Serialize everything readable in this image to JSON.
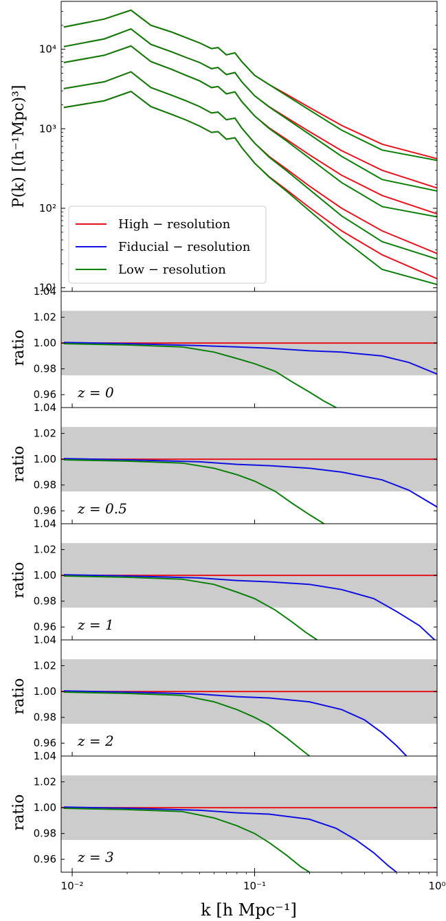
{
  "chart_data": [
    {
      "type": "line",
      "panel": "power-spectrum",
      "ylabel": "P(k) [(h⁻¹Mpc)³]",
      "xscale": "log",
      "yscale": "log",
      "xlim": [
        0.0087,
        1.0
      ],
      "ylim": [
        9.0,
        40000
      ],
      "xticks": [
        {
          "v": 0.01,
          "label": "10⁻²"
        },
        {
          "v": 0.1,
          "label": "10⁻¹"
        },
        {
          "v": 1,
          "label": "10⁰"
        }
      ],
      "yticks": [
        {
          "v": 10,
          "label": "10¹"
        },
        {
          "v": 100,
          "label": "10²"
        },
        {
          "v": 1000,
          "label": "10³"
        },
        {
          "v": 10000,
          "label": "10⁴"
        }
      ],
      "legend": {
        "position": "lower-left",
        "entries": [
          {
            "label": "High − resolution",
            "color": "#e6131d"
          },
          {
            "label": "Fiducial − resolution",
            "color": "#1010e0"
          },
          {
            "label": "Low − resolution",
            "color": "#0a800a"
          }
        ]
      },
      "x": [
        0.009,
        0.015,
        0.021,
        0.027,
        0.035,
        0.042,
        0.05,
        0.058,
        0.063,
        0.07,
        0.078,
        0.085,
        0.1,
        0.12,
        0.15,
        0.2,
        0.3,
        0.5,
        1.0
      ],
      "series": [
        {
          "name": "High − resolution",
          "color": "#e6131d",
          "curves": [
            [
              19000,
              24000,
              31000,
              20000,
              16500,
              14000,
              12000,
              10200,
              10500,
              8500,
              9000,
              7000,
              4700,
              3600,
              2700,
              1850,
              1100,
              640,
              420
            ],
            [
              10800,
              13500,
              18000,
              11500,
              9300,
              7900,
              6800,
              5700,
              5900,
              4800,
              5100,
              3900,
              2600,
              1900,
              1380,
              920,
              530,
              300,
              180
            ],
            [
              6800,
              8400,
              11000,
              7000,
              5600,
              4700,
              4000,
              3300,
              3400,
              2750,
              2900,
              2200,
              1450,
              1030,
              730,
              470,
              260,
              145,
              85
            ],
            [
              3200,
              3900,
              5200,
              3300,
              2650,
              2250,
              1900,
              1580,
              1620,
              1300,
              1360,
              1020,
              660,
              450,
              310,
              190,
              100,
              52,
              27
            ],
            [
              1850,
              2250,
              2950,
              1900,
              1520,
              1290,
              1080,
              900,
              920,
              740,
              770,
              580,
              370,
              250,
              170,
              102,
              52,
              26,
              13
            ]
          ]
        },
        {
          "name": "Low − resolution",
          "color": "#0a800a",
          "curves": [
            [
              19000,
              24000,
              31000,
              20000,
              16500,
              14000,
              12000,
              10200,
              10500,
              8500,
              9000,
              7000,
              4700,
              3600,
              2600,
              1720,
              960,
              540,
              400
            ],
            [
              10800,
              13500,
              18000,
              11500,
              9300,
              7900,
              6800,
              5700,
              5900,
              4800,
              5100,
              3900,
              2600,
              1880,
              1330,
              850,
              450,
              230,
              165
            ],
            [
              6800,
              8400,
              11000,
              7000,
              5600,
              4700,
              4000,
              3300,
              3400,
              2750,
              2900,
              2200,
              1450,
              1010,
              700,
              425,
              210,
              105,
              78
            ],
            [
              3200,
              3900,
              5200,
              3300,
              2650,
              2250,
              1900,
              1580,
              1620,
              1300,
              1360,
              1020,
              660,
              440,
              295,
              172,
              80,
              38,
              23
            ],
            [
              1850,
              2250,
              2950,
              1900,
              1520,
              1290,
              1080,
              900,
              920,
              740,
              770,
              580,
              370,
              247,
              163,
              93,
              42,
              17,
              11
            ]
          ]
        }
      ]
    },
    {
      "type": "line",
      "panel": "ratio",
      "redshift_label": "z = 0",
      "ylabel": "ratio",
      "ylim": [
        0.95,
        1.04
      ],
      "yticks": [
        0.96,
        0.98,
        1.0,
        1.02,
        1.04
      ],
      "band": [
        0.975,
        1.025
      ],
      "xscale": "log",
      "series": [
        {
          "name": "High − resolution",
          "color": "#e6131d",
          "x": [
            0.0087,
            1.0
          ],
          "values": [
            1.0,
            1.0
          ]
        },
        {
          "name": "Fiducial − resolution",
          "color": "#1010e0",
          "x": [
            0.009,
            0.02,
            0.05,
            0.08,
            0.12,
            0.2,
            0.3,
            0.5,
            0.7,
            1.0
          ],
          "values": [
            1.0005,
            0.9995,
            0.998,
            0.997,
            0.996,
            0.994,
            0.993,
            0.99,
            0.985,
            0.976
          ]
        },
        {
          "name": "Low − resolution",
          "color": "#0a800a",
          "x": [
            0.009,
            0.02,
            0.04,
            0.06,
            0.08,
            0.1,
            0.13,
            0.16,
            0.2,
            0.24,
            0.28
          ],
          "values": [
            0.9995,
            0.9985,
            0.997,
            0.993,
            0.988,
            0.984,
            0.978,
            0.97,
            0.962,
            0.955,
            0.95
          ]
        }
      ]
    },
    {
      "type": "line",
      "panel": "ratio",
      "redshift_label": "z = 0.5",
      "ylabel": "ratio",
      "ylim": [
        0.95,
        1.04
      ],
      "yticks": [
        0.96,
        0.98,
        1.0,
        1.02,
        1.04
      ],
      "band": [
        0.975,
        1.025
      ],
      "xscale": "log",
      "series": [
        {
          "name": "High − resolution",
          "color": "#e6131d",
          "x": [
            0.0087,
            1.0
          ],
          "values": [
            1.0,
            1.0
          ]
        },
        {
          "name": "Fiducial − resolution",
          "color": "#1010e0",
          "x": [
            0.009,
            0.02,
            0.05,
            0.08,
            0.12,
            0.2,
            0.3,
            0.5,
            0.7,
            1.0
          ],
          "values": [
            1.0005,
            0.9995,
            0.998,
            0.996,
            0.995,
            0.993,
            0.99,
            0.984,
            0.976,
            0.963
          ]
        },
        {
          "name": "Low − resolution",
          "color": "#0a800a",
          "x": [
            0.009,
            0.02,
            0.04,
            0.06,
            0.08,
            0.1,
            0.13,
            0.16,
            0.2,
            0.24
          ],
          "values": [
            0.9995,
            0.9985,
            0.997,
            0.993,
            0.988,
            0.983,
            0.975,
            0.966,
            0.957,
            0.95
          ]
        }
      ]
    },
    {
      "type": "line",
      "panel": "ratio",
      "redshift_label": "z = 1",
      "ylabel": "ratio",
      "ylim": [
        0.95,
        1.04
      ],
      "yticks": [
        0.96,
        0.98,
        1.0,
        1.02,
        1.04
      ],
      "band": [
        0.975,
        1.025
      ],
      "xscale": "log",
      "series": [
        {
          "name": "High − resolution",
          "color": "#e6131d",
          "x": [
            0.0087,
            1.0
          ],
          "values": [
            1.0,
            1.0
          ]
        },
        {
          "name": "Fiducial − resolution",
          "color": "#1010e0",
          "x": [
            0.009,
            0.02,
            0.05,
            0.08,
            0.12,
            0.2,
            0.3,
            0.45,
            0.6,
            0.8,
            0.97
          ],
          "values": [
            1.0005,
            0.9995,
            0.998,
            0.996,
            0.995,
            0.993,
            0.989,
            0.982,
            0.972,
            0.961,
            0.95
          ]
        },
        {
          "name": "Low − resolution",
          "color": "#0a800a",
          "x": [
            0.009,
            0.02,
            0.04,
            0.06,
            0.08,
            0.1,
            0.13,
            0.16,
            0.19,
            0.22
          ],
          "values": [
            0.9995,
            0.9985,
            0.997,
            0.993,
            0.987,
            0.982,
            0.973,
            0.964,
            0.956,
            0.95
          ]
        }
      ]
    },
    {
      "type": "line",
      "panel": "ratio",
      "redshift_label": "z = 2",
      "ylabel": "ratio",
      "ylim": [
        0.95,
        1.04
      ],
      "yticks": [
        0.96,
        0.98,
        1.0,
        1.02,
        1.04
      ],
      "band": [
        0.975,
        1.025
      ],
      "xscale": "log",
      "series": [
        {
          "name": "High − resolution",
          "color": "#e6131d",
          "x": [
            0.0087,
            1.0
          ],
          "values": [
            1.0,
            1.0
          ]
        },
        {
          "name": "Fiducial − resolution",
          "color": "#1010e0",
          "x": [
            0.009,
            0.02,
            0.05,
            0.08,
            0.12,
            0.2,
            0.3,
            0.4,
            0.5,
            0.6,
            0.68
          ],
          "values": [
            1.0005,
            0.9995,
            0.998,
            0.996,
            0.995,
            0.992,
            0.986,
            0.978,
            0.968,
            0.958,
            0.95
          ]
        },
        {
          "name": "Low − resolution",
          "color": "#0a800a",
          "x": [
            0.009,
            0.02,
            0.04,
            0.06,
            0.08,
            0.1,
            0.12,
            0.15,
            0.18,
            0.2
          ],
          "values": [
            0.9995,
            0.9985,
            0.997,
            0.992,
            0.986,
            0.98,
            0.974,
            0.964,
            0.955,
            0.95
          ]
        }
      ]
    },
    {
      "type": "line",
      "panel": "ratio",
      "redshift_label": "z = 3",
      "ylabel": "ratio",
      "ylim": [
        0.95,
        1.04
      ],
      "yticks": [
        0.96,
        0.98,
        1.0,
        1.02,
        1.04
      ],
      "band": [
        0.975,
        1.025
      ],
      "xscale": "log",
      "series": [
        {
          "name": "High − resolution",
          "color": "#e6131d",
          "x": [
            0.0087,
            1.0
          ],
          "values": [
            1.0,
            1.0
          ]
        },
        {
          "name": "Fiducial − resolution",
          "color": "#1010e0",
          "x": [
            0.009,
            0.02,
            0.05,
            0.08,
            0.12,
            0.2,
            0.28,
            0.36,
            0.45,
            0.54,
            0.6
          ],
          "values": [
            1.0005,
            0.9995,
            0.998,
            0.996,
            0.995,
            0.991,
            0.984,
            0.975,
            0.965,
            0.955,
            0.95
          ]
        },
        {
          "name": "Low − resolution",
          "color": "#0a800a",
          "x": [
            0.009,
            0.02,
            0.04,
            0.06,
            0.08,
            0.1,
            0.12,
            0.15,
            0.18,
            0.2
          ],
          "values": [
            0.9995,
            0.9985,
            0.997,
            0.992,
            0.986,
            0.98,
            0.973,
            0.963,
            0.954,
            0.95
          ]
        }
      ]
    }
  ],
  "xaxis": {
    "label": "k [h Mpc⁻¹]",
    "ticks": [
      {
        "v": 0.01,
        "label": "10⁻²"
      },
      {
        "v": 0.1,
        "label": "10⁻¹"
      },
      {
        "v": 1,
        "label": "10⁰"
      }
    ]
  }
}
